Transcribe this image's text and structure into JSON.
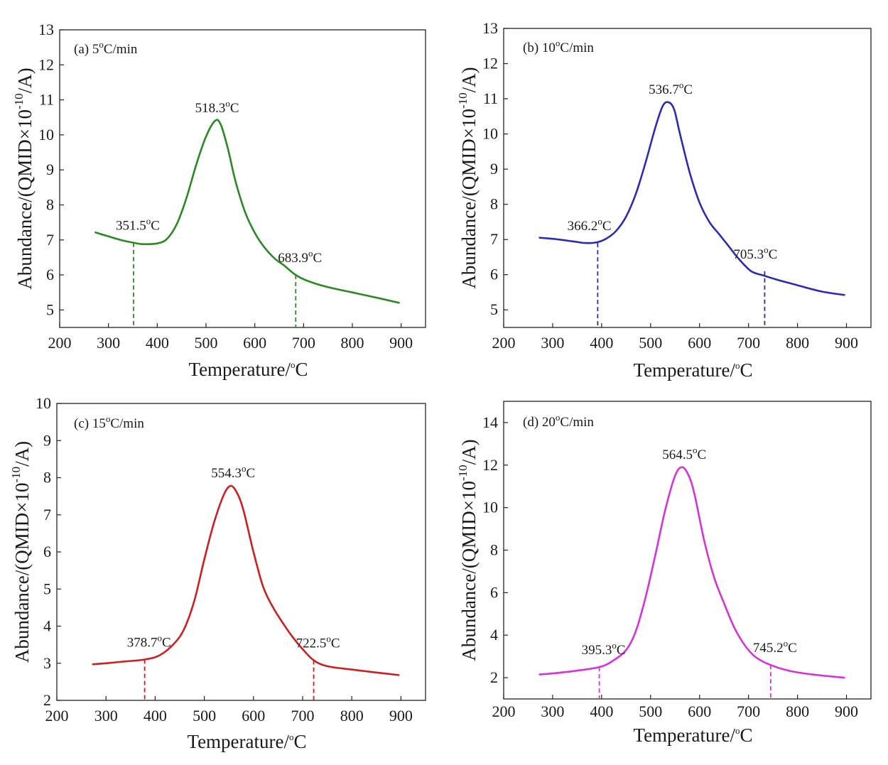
{
  "figure": {
    "superscripts": {
      "degree": "o",
      "exponent": "-10"
    },
    "temperature_unit": "C",
    "temperature_unit_rate": "C/min"
  },
  "chart_data": [
    {
      "type": "line",
      "panel_label": "(a) 5",
      "heating_rate": "5°C/min",
      "color": "#2a8a22",
      "xlabel": "Temperature/°C",
      "ylabel": "Abundance/(QMID×10-10/A)",
      "xlim": [
        200,
        950
      ],
      "ylim": [
        4.5,
        13
      ],
      "xticks": [
        "200",
        "300",
        "400",
        "500",
        "600",
        "700",
        "800",
        "900"
      ],
      "yticks": [
        "5",
        "6",
        "7",
        "8",
        "9",
        "10",
        "11",
        "12",
        "13"
      ],
      "series": [
        {
          "name": "5°C/min",
          "x": [
            272,
            300,
            330,
            351.5,
            370,
            400,
            420,
            440,
            460,
            480,
            500,
            518.3,
            530,
            545,
            560,
            580,
            600,
            620,
            640,
            660,
            683.9,
            710,
            750,
            800,
            850,
            897
          ],
          "y": [
            7.22,
            7.1,
            6.98,
            6.92,
            6.88,
            6.9,
            7.03,
            7.45,
            8.2,
            9.15,
            9.95,
            10.4,
            10.3,
            9.6,
            8.7,
            7.8,
            7.2,
            6.78,
            6.48,
            6.27,
            6.0,
            5.82,
            5.65,
            5.5,
            5.35,
            5.2
          ]
        }
      ],
      "annotations": [
        {
          "label": "351.5",
          "x": 351.5,
          "y": 6.92,
          "vline": true
        },
        {
          "label": "518.3",
          "x": 518.3,
          "y": 10.4,
          "vline": false
        },
        {
          "label": "683.9",
          "x": 683.9,
          "y": 6.0,
          "vline": true
        }
      ]
    },
    {
      "type": "line",
      "panel_label": "(b) 10",
      "heating_rate": "10°C/min",
      "color": "#2b2bb3",
      "xlabel": "Temperature/°C",
      "ylabel": "Abundance/(QMID×10-10/A)",
      "xlim": [
        200,
        950
      ],
      "ylim": [
        4.5,
        13
      ],
      "xticks": [
        "200",
        "300",
        "400",
        "500",
        "600",
        "700",
        "800",
        "900"
      ],
      "yticks": [
        "5",
        "6",
        "7",
        "8",
        "9",
        "10",
        "11",
        "12",
        "13"
      ],
      "series": [
        {
          "name": "10°C/min",
          "x": [
            272,
            300,
            340,
            366.2,
            390,
            410,
            430,
            450,
            470,
            490,
            510,
            525,
            536.7,
            548,
            560,
            580,
            600,
            620,
            640,
            660,
            680,
            705.3,
            730,
            760,
            800,
            850,
            897
          ],
          "y": [
            7.05,
            7.02,
            6.95,
            6.9,
            6.92,
            7.03,
            7.25,
            7.65,
            8.3,
            9.2,
            10.2,
            10.8,
            10.9,
            10.7,
            10.0,
            8.9,
            8.05,
            7.5,
            7.15,
            6.8,
            6.45,
            6.1,
            5.98,
            5.85,
            5.7,
            5.52,
            5.42
          ]
        }
      ],
      "annotations": [
        {
          "label": "366.2",
          "x": 366.2,
          "y": 6.9,
          "vline": true,
          "vline_x": 392
        },
        {
          "label": "536.7",
          "x": 536.7,
          "y": 10.9,
          "vline": false
        },
        {
          "label": "705.3",
          "x": 705.3,
          "y": 6.1,
          "vline": true,
          "vline_x": 733
        }
      ]
    },
    {
      "type": "line",
      "panel_label": "(c) 15",
      "heating_rate": "15°C/min",
      "color": "#cc1f1f",
      "xlabel": "Temperature/°C",
      "ylabel": "Abundance/(QMID×10-10/A)",
      "xlim": [
        200,
        950
      ],
      "ylim": [
        2,
        10
      ],
      "xticks": [
        "200",
        "300",
        "400",
        "500",
        "600",
        "700",
        "800",
        "900"
      ],
      "yticks": [
        "2",
        "3",
        "4",
        "5",
        "6",
        "7",
        "8",
        "9",
        "10"
      ],
      "series": [
        {
          "name": "15°C/min",
          "x": [
            272,
            300,
            340,
            378.7,
            410,
            440,
            460,
            480,
            500,
            520,
            540,
            554.3,
            568,
            580,
            600,
            620,
            640,
            660,
            680,
            700,
            722.5,
            750,
            800,
            850,
            897
          ],
          "y": [
            2.97,
            3.0,
            3.05,
            3.1,
            3.22,
            3.55,
            3.95,
            4.7,
            5.8,
            6.8,
            7.55,
            7.78,
            7.55,
            7.1,
            6.0,
            5.05,
            4.5,
            4.08,
            3.7,
            3.38,
            3.08,
            2.92,
            2.83,
            2.75,
            2.68
          ]
        }
      ],
      "annotations": [
        {
          "label": "378.7",
          "x": 378.7,
          "y": 3.1,
          "vline": true
        },
        {
          "label": "554.3",
          "x": 554.3,
          "y": 7.78,
          "vline": false
        },
        {
          "label": "722.5",
          "x": 722.5,
          "y": 3.08,
          "vline": true
        }
      ]
    },
    {
      "type": "line",
      "panel_label": "(d) 20",
      "heating_rate": "20°C/min",
      "color": "#d633d6",
      "xlabel": "Temperature/°C",
      "ylabel": "Abundance/(QMID×10-10/A)",
      "xlim": [
        200,
        950
      ],
      "ylim": [
        1,
        15
      ],
      "xticks": [
        "200",
        "300",
        "400",
        "500",
        "600",
        "700",
        "800",
        "900"
      ],
      "yticks": [
        "2",
        "4",
        "6",
        "8",
        "10",
        "12",
        "14"
      ],
      "series": [
        {
          "name": "20°C/min",
          "x": [
            272,
            300,
            350,
            395.3,
            420,
            450,
            470,
            490,
            510,
            530,
            550,
            564.5,
            578,
            590,
            610,
            630,
            650,
            670,
            690,
            710,
            730,
            745.2,
            770,
            800,
            850,
            897
          ],
          "y": [
            2.15,
            2.2,
            2.33,
            2.5,
            2.75,
            3.3,
            4.2,
            5.8,
            7.8,
            9.9,
            11.5,
            11.9,
            11.5,
            10.6,
            8.4,
            6.7,
            5.5,
            4.4,
            3.6,
            3.05,
            2.75,
            2.6,
            2.4,
            2.25,
            2.1,
            2.0
          ]
        }
      ],
      "annotations": [
        {
          "label": "395.3",
          "x": 395.3,
          "y": 2.5,
          "vline": true
        },
        {
          "label": "564.5",
          "x": 564.5,
          "y": 11.9,
          "vline": false
        },
        {
          "label": "745.2",
          "x": 745.2,
          "y": 2.6,
          "vline": true
        }
      ]
    }
  ]
}
